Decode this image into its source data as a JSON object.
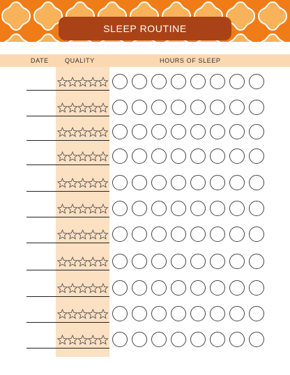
{
  "title": "SLEEP ROUTINE",
  "headers": {
    "date": "DATE",
    "quality": "QUALITY",
    "hours": "HOURS OF SLEEP"
  },
  "rows": 11,
  "stars_per_row": 5,
  "circles_per_row": 8,
  "colors": {
    "banner": "#a94317",
    "pattern": "#f07c18",
    "header_bg": "#fbd8b0",
    "quality_bg": "#fce0c2"
  }
}
